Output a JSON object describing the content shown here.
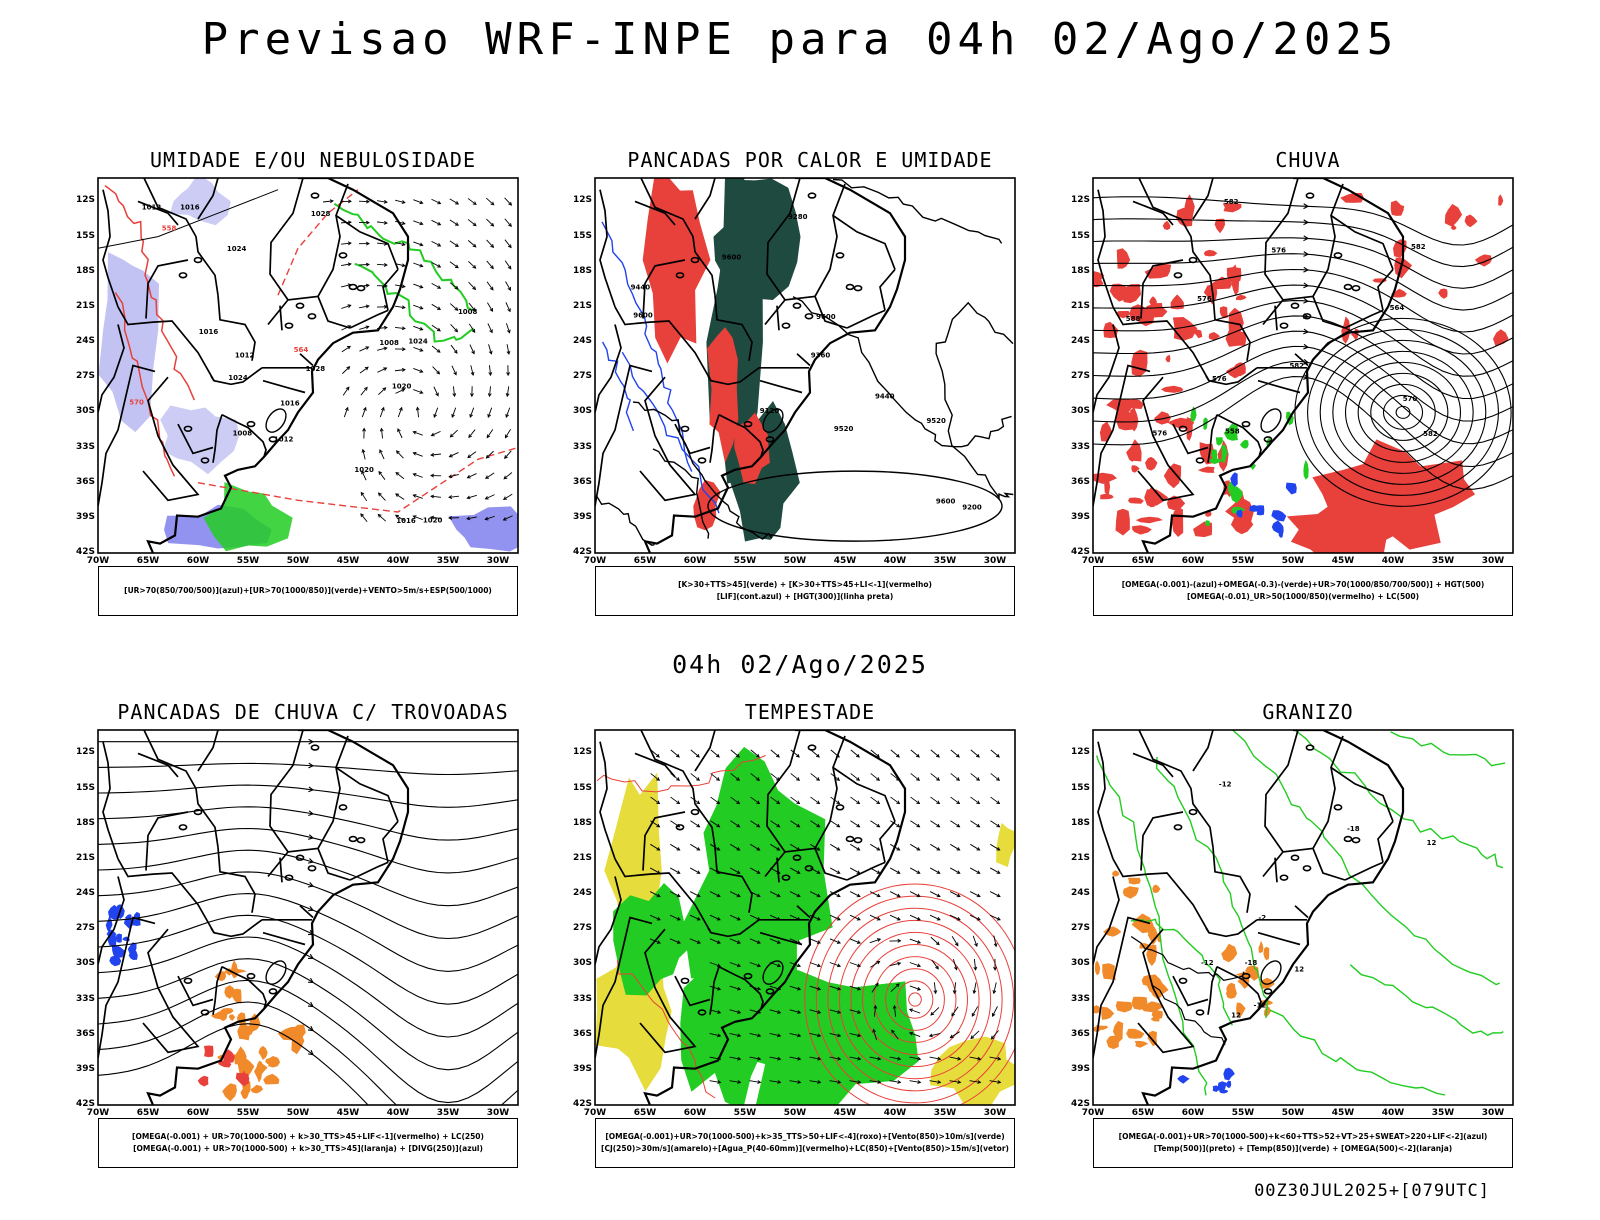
{
  "title": "Previsao WRF-INPE  para 04h 02/Ago/2025",
  "mid_date": "04h 02/Ago/2025",
  "footer": "00Z30JUL2025+[079UTC]",
  "lat_labels": [
    "12S",
    "15S",
    "18S",
    "21S",
    "24S",
    "27S",
    "30S",
    "33S",
    "36S",
    "39S",
    "42S"
  ],
  "lon_labels": [
    "70W",
    "65W",
    "60W",
    "55W",
    "50W",
    "45W",
    "40W",
    "35W",
    "30W"
  ],
  "colors": {
    "red": "#e8403a",
    "green": "#22cc22",
    "blue": "#2244ee",
    "dark": "#1f4a40",
    "yellow": "#e6dd3c",
    "orange": "#f08a2a",
    "lilac": "#aaaaee"
  },
  "panels": [
    {
      "title": "UMIDADE E/OU NEBULOSIDADE",
      "legend": [
        "[UR>70(850/700/500)](azul)+[UR>70(1000/850)](verde)+VENTO>5m/s+ESP(500/1000)"
      ],
      "contour_labels": [
        "1016",
        "1016",
        "1016",
        "1020",
        "1020",
        "1024",
        "1012",
        "1024",
        "1008",
        "1008",
        "1024",
        "1028",
        "1012",
        "1016",
        "1012",
        "1020",
        "1028",
        "1008",
        "564",
        "570",
        "558"
      ]
    },
    {
      "title": "PANCADAS POR CALOR E UMIDADE",
      "legend": [
        "[K>30+TTS>45](verde) + [K>30+TTS>45+LI<-1](vermelho)",
        "[LIF](cont.azul) + [HGT(300)](linha preta)"
      ],
      "contour_labels": [
        "9600",
        "9600",
        "9600",
        "9520",
        "9440",
        "9360",
        "9280",
        "9200",
        "9520",
        "9120",
        "9440",
        "9600"
      ]
    },
    {
      "title": "CHUVA",
      "legend": [
        "[OMEGA(-0.001)-(azul)+OMEGA(-0.3)-(verde)+UR>70(1000/850/700/500)] + HGT(500)",
        "[OMEGA(-0.01)_UR>50(1000/850)(vermelho) + LC(500)"
      ],
      "contour_labels": [
        "582",
        "582",
        "576",
        "570",
        "564",
        "558",
        "576",
        "582",
        "576",
        "588",
        "582",
        "576"
      ]
    },
    {
      "title": "PANCADAS DE CHUVA C/ TROVOADAS",
      "legend": [
        "[OMEGA(-0.001) + UR>70(1000-500) + k>30_TTS>45+LIF<-1](vermelho) + LC(250)",
        "[OMEGA(-0.001) + UR>70(1000-500) + k>30_TTS>45](laranja) + [DIVG(250)](azul)"
      ],
      "contour_labels": []
    },
    {
      "title": "TEMPESTADE",
      "legend": [
        "[OMEGA(-0.001)+UR>70(1000-500)+k>35_TTS>50+LIF<-4](roxo)+[Vento(850)>10m/s](verde)",
        "[CJ(250)>30m/s](amarelo)+[Agua_P(40-60mm)](vermelho)+LC(850)+[Vento(850)>15m/s](vetor)"
      ],
      "contour_labels": []
    },
    {
      "title": "GRANIZO",
      "legend": [
        "[OMEGA(-0.001)+UR>70(1000-500)+k<60+TTS>52+VT>25+SWEAT>220+LIF<-2](azul)",
        "[Temp(500)](preto) + [Temp(850)](verde) + [OMEGA(500)<-2](laranja)"
      ],
      "contour_labels": [
        "-18",
        "-12",
        "-12",
        "-2",
        "12",
        "12",
        "12",
        "-12",
        "-18"
      ]
    }
  ]
}
